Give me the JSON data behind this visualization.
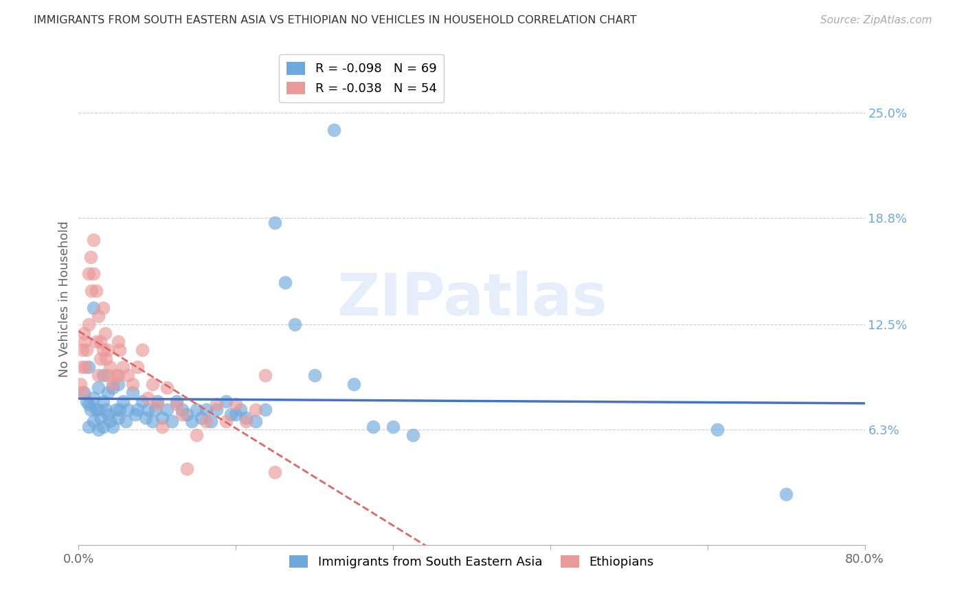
{
  "title": "IMMIGRANTS FROM SOUTH EASTERN ASIA VS ETHIOPIAN NO VEHICLES IN HOUSEHOLD CORRELATION CHART",
  "source": "Source: ZipAtlas.com",
  "ylabel": "No Vehicles in Household",
  "legend_label1": "Immigrants from South Eastern Asia",
  "legend_label2": "Ethiopians",
  "r1": -0.098,
  "n1": 69,
  "r2": -0.038,
  "n2": 54,
  "xlim": [
    0.0,
    0.8
  ],
  "ylim": [
    -0.005,
    0.285
  ],
  "ytick_labels_right": [
    "6.3%",
    "12.5%",
    "18.8%",
    "25.0%"
  ],
  "ytick_vals_right": [
    0.063,
    0.125,
    0.188,
    0.25
  ],
  "color_blue": "#6fa8dc",
  "color_pink": "#ea9999",
  "color_blue_line": "#4472c4",
  "color_pink_line": "#e06666",
  "watermark": "ZIPatlas",
  "blue_x": [
    0.005,
    0.008,
    0.01,
    0.01,
    0.01,
    0.012,
    0.015,
    0.015,
    0.015,
    0.018,
    0.02,
    0.02,
    0.02,
    0.022,
    0.025,
    0.025,
    0.025,
    0.028,
    0.03,
    0.03,
    0.032,
    0.035,
    0.035,
    0.038,
    0.04,
    0.04,
    0.042,
    0.045,
    0.048,
    0.05,
    0.055,
    0.058,
    0.06,
    0.065,
    0.068,
    0.07,
    0.075,
    0.078,
    0.08,
    0.085,
    0.09,
    0.095,
    0.1,
    0.105,
    0.11,
    0.115,
    0.12,
    0.125,
    0.13,
    0.135,
    0.14,
    0.15,
    0.155,
    0.16,
    0.165,
    0.17,
    0.18,
    0.19,
    0.2,
    0.21,
    0.22,
    0.24,
    0.26,
    0.28,
    0.3,
    0.32,
    0.34,
    0.65,
    0.72
  ],
  "blue_y": [
    0.085,
    0.08,
    0.1,
    0.078,
    0.065,
    0.075,
    0.135,
    0.082,
    0.068,
    0.075,
    0.088,
    0.075,
    0.063,
    0.07,
    0.095,
    0.08,
    0.065,
    0.075,
    0.085,
    0.072,
    0.068,
    0.088,
    0.065,
    0.075,
    0.09,
    0.07,
    0.075,
    0.08,
    0.068,
    0.075,
    0.085,
    0.072,
    0.075,
    0.08,
    0.07,
    0.075,
    0.068,
    0.075,
    0.08,
    0.07,
    0.075,
    0.068,
    0.08,
    0.075,
    0.072,
    0.068,
    0.075,
    0.07,
    0.075,
    0.068,
    0.075,
    0.08,
    0.072,
    0.072,
    0.075,
    0.07,
    0.068,
    0.075,
    0.185,
    0.15,
    0.125,
    0.095,
    0.24,
    0.09,
    0.065,
    0.065,
    0.06,
    0.063,
    0.025
  ],
  "pink_x": [
    0.002,
    0.003,
    0.004,
    0.004,
    0.005,
    0.006,
    0.007,
    0.008,
    0.01,
    0.01,
    0.012,
    0.013,
    0.015,
    0.015,
    0.018,
    0.018,
    0.02,
    0.02,
    0.022,
    0.022,
    0.025,
    0.025,
    0.027,
    0.028,
    0.03,
    0.03,
    0.032,
    0.035,
    0.038,
    0.04,
    0.04,
    0.042,
    0.045,
    0.05,
    0.055,
    0.06,
    0.065,
    0.07,
    0.075,
    0.08,
    0.085,
    0.09,
    0.1,
    0.105,
    0.11,
    0.12,
    0.13,
    0.14,
    0.15,
    0.16,
    0.17,
    0.18,
    0.19,
    0.2
  ],
  "pink_y": [
    0.09,
    0.1,
    0.11,
    0.085,
    0.12,
    0.115,
    0.1,
    0.11,
    0.155,
    0.125,
    0.165,
    0.145,
    0.175,
    0.155,
    0.145,
    0.115,
    0.13,
    0.095,
    0.115,
    0.105,
    0.135,
    0.11,
    0.12,
    0.105,
    0.11,
    0.095,
    0.1,
    0.09,
    0.095,
    0.115,
    0.095,
    0.11,
    0.1,
    0.095,
    0.09,
    0.1,
    0.11,
    0.082,
    0.09,
    0.078,
    0.065,
    0.088,
    0.078,
    0.072,
    0.04,
    0.06,
    0.068,
    0.078,
    0.068,
    0.078,
    0.068,
    0.075,
    0.095,
    0.038
  ]
}
